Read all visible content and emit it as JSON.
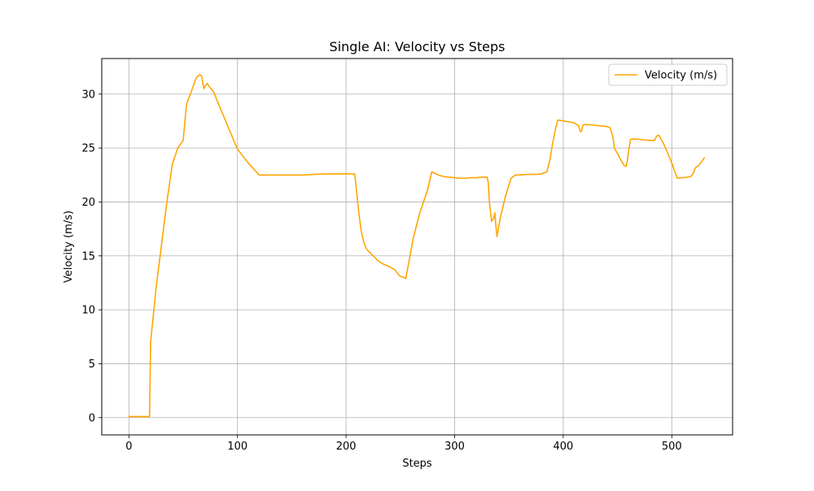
{
  "chart_data": {
    "type": "line",
    "title": "Single AI: Velocity vs Steps",
    "xlabel": "Steps",
    "ylabel": "Velocity (m/s)",
    "xlim": [
      -25,
      556
    ],
    "ylim": [
      -1.6,
      33.3
    ],
    "xticks": [
      0,
      100,
      200,
      300,
      400,
      500
    ],
    "yticks": [
      0,
      5,
      10,
      15,
      20,
      25,
      30
    ],
    "grid": true,
    "legend_position": "top-right",
    "series": [
      {
        "name": "Velocity (m/s)",
        "color": "#FFA500",
        "x": [
          0,
          18,
          19,
          20,
          25,
          30,
          35,
          40,
          45,
          50,
          53,
          54,
          58,
          62,
          65,
          67,
          69,
          70,
          72,
          74,
          78,
          85,
          92,
          100,
          110,
          120,
          130,
          140,
          150,
          160,
          170,
          180,
          190,
          200,
          208,
          210,
          212,
          214,
          216,
          218,
          220,
          222,
          225,
          230,
          235,
          240,
          245,
          248,
          250,
          253,
          255,
          258,
          262,
          268,
          275,
          279,
          285,
          290,
          295,
          300,
          305,
          310,
          315,
          320,
          325,
          330,
          331,
          332,
          334,
          336,
          337,
          338,
          339,
          342,
          347,
          352,
          356,
          360,
          365,
          370,
          375,
          380,
          385,
          388,
          390,
          393,
          395,
          398,
          401,
          404,
          407,
          410,
          412,
          414,
          415,
          416,
          417,
          418,
          420,
          423,
          426,
          430,
          435,
          440,
          443,
          444,
          445,
          446,
          447,
          450,
          453,
          456,
          458,
          459,
          460,
          462,
          465,
          470,
          475,
          480,
          484,
          486,
          488,
          492,
          496,
          500,
          505,
          510,
          515,
          518,
          520,
          521,
          522,
          525,
          530
        ],
        "y": [
          0.1,
          0.1,
          0.1,
          7,
          12,
          16,
          20,
          23.5,
          25,
          25.7,
          29,
          29.3,
          30.4,
          31.5,
          31.8,
          31.7,
          30.5,
          30.7,
          31,
          30.7,
          30.2,
          28.5,
          26.8,
          24.9,
          23.6,
          22.5,
          22.5,
          22.5,
          22.5,
          22.5,
          22.55,
          22.6,
          22.6,
          22.6,
          22.6,
          20.7,
          18.8,
          17.3,
          16.4,
          15.8,
          15.5,
          15.3,
          15,
          14.5,
          14.2,
          14,
          13.7,
          13.3,
          13.1,
          13.0,
          12.9,
          14.5,
          16.7,
          19,
          21.1,
          22.8,
          22.5,
          22.35,
          22.3,
          22.25,
          22.2,
          22.2,
          22.25,
          22.25,
          22.3,
          22.3,
          21.8,
          20,
          18.2,
          18.5,
          19,
          17.8,
          16.8,
          18.5,
          20.6,
          22.2,
          22.5,
          22.5,
          22.55,
          22.55,
          22.55,
          22.6,
          22.8,
          24,
          25.3,
          26.8,
          27.6,
          27.55,
          27.5,
          27.45,
          27.4,
          27.35,
          27.2,
          27.1,
          26.8,
          26.5,
          26.6,
          27.1,
          27.2,
          27.15,
          27.15,
          27.1,
          27.05,
          27.0,
          26.9,
          26.6,
          26.3,
          25.9,
          25.0,
          24.5,
          23.9,
          23.4,
          23.3,
          23.8,
          24.6,
          25.8,
          25.85,
          25.8,
          25.75,
          25.7,
          25.7,
          26.1,
          26.2,
          25.5,
          24.6,
          23.6,
          22.2,
          22.25,
          22.3,
          22.4,
          22.7,
          23.0,
          23.2,
          23.4,
          24.1
        ]
      }
    ]
  }
}
